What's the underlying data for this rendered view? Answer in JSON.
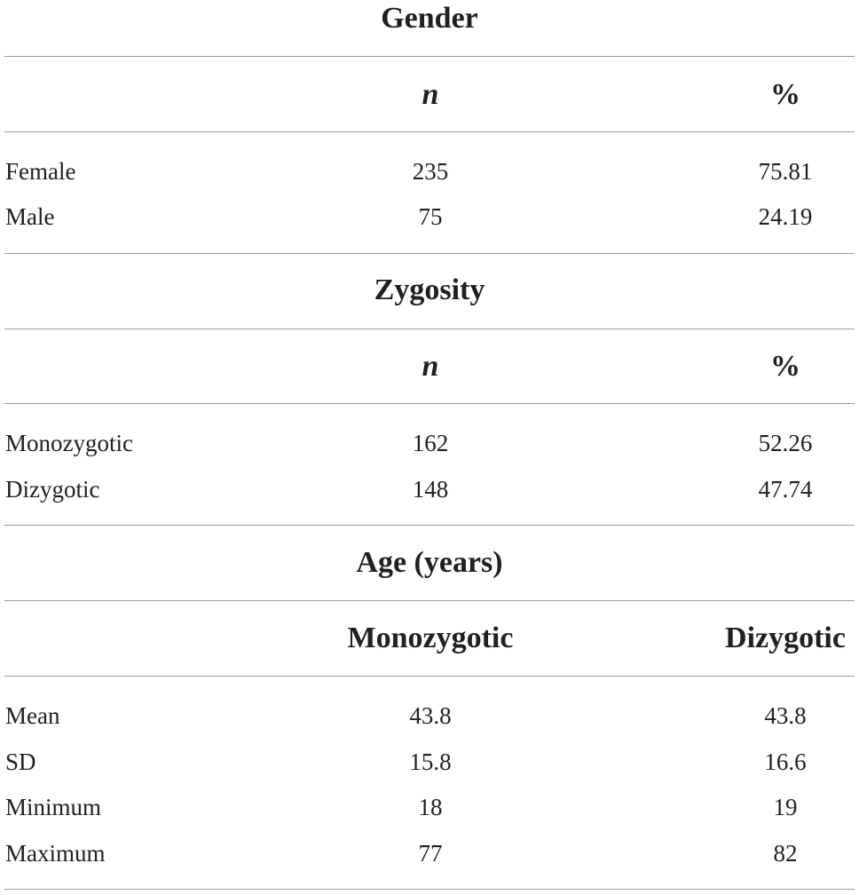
{
  "sections": [
    {
      "title": "Gender",
      "headers": [
        "n",
        "%"
      ],
      "rows": [
        {
          "label": "Female",
          "values": [
            "235",
            "75.81"
          ]
        },
        {
          "label": "Male",
          "values": [
            "75",
            "24.19"
          ]
        }
      ]
    },
    {
      "title": "Zygosity",
      "headers": [
        "n",
        "%"
      ],
      "rows": [
        {
          "label": "Monozygotic",
          "values": [
            "162",
            "52.26"
          ]
        },
        {
          "label": "Dizygotic",
          "values": [
            "148",
            "47.74"
          ]
        }
      ]
    },
    {
      "title": "Age (years)",
      "headers": [
        "Monozygotic",
        "Dizygotic"
      ],
      "rows": [
        {
          "label": "Mean",
          "values": [
            "43.8",
            "43.8"
          ]
        },
        {
          "label": "SD",
          "values": [
            "15.8",
            "16.6"
          ]
        },
        {
          "label": "Minimum",
          "values": [
            "18",
            "19"
          ]
        },
        {
          "label": "Maximum",
          "values": [
            "77",
            "82"
          ]
        }
      ]
    }
  ]
}
